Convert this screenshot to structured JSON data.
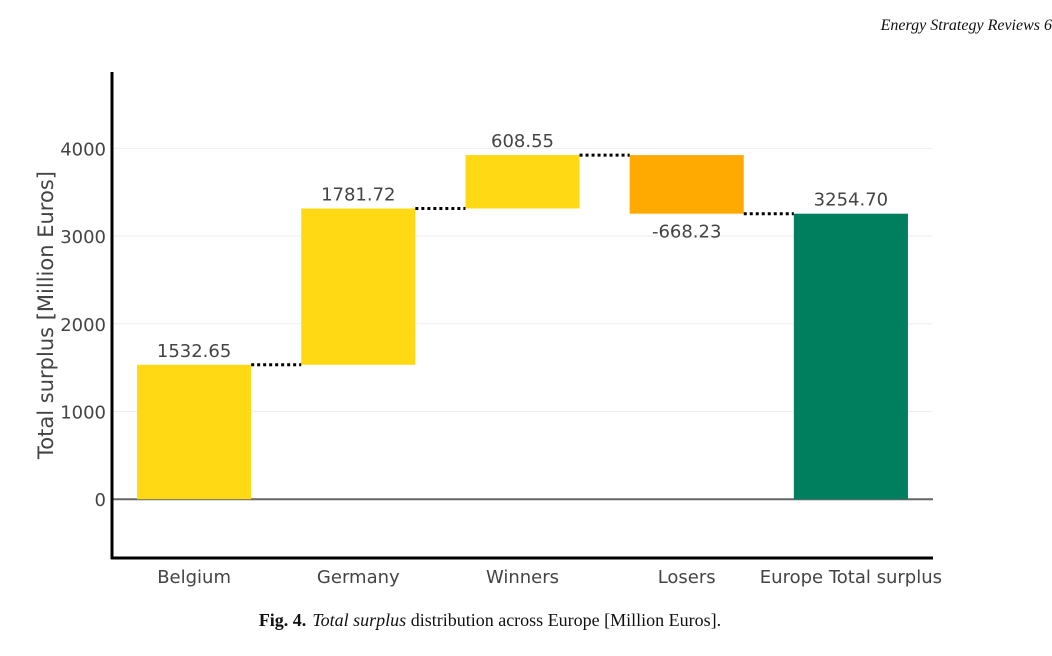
{
  "header": {
    "journal": "Energy Strategy Reviews 6"
  },
  "caption": {
    "label": "Fig. 4.",
    "italic": "Total surplus",
    "rest": " distribution across Europe [Million Euros]."
  },
  "chart_data": {
    "type": "waterfall",
    "title": "",
    "xlabel": "",
    "ylabel": "Total surplus [Million Euros]",
    "categories": [
      "Belgium",
      "Germany",
      "Winners",
      "Losers",
      "Europe Total surplus"
    ],
    "values": [
      1532.65,
      1781.72,
      608.55,
      -668.23,
      3254.7
    ],
    "measure": [
      "relative",
      "relative",
      "relative",
      "relative",
      "total"
    ],
    "data_labels": [
      "1532.65",
      "1781.72",
      "608.55",
      "-668.23",
      "3254.70"
    ],
    "yticks": [
      0,
      1000,
      2000,
      3000,
      4000
    ],
    "ylim": [
      -670,
      4870
    ],
    "grid": true,
    "connector": "dotted",
    "colors": {
      "increasing": "#FFDA14",
      "decreasing": "#FFAA00",
      "total": "#007F5F"
    }
  }
}
